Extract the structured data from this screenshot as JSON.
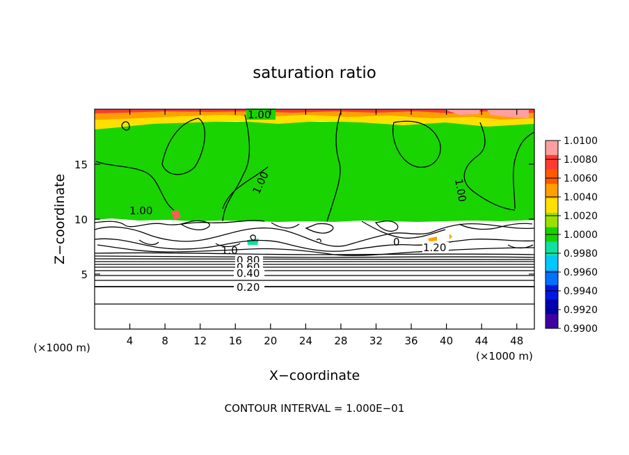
{
  "chart_data": {
    "type": "heatmap",
    "title": "saturation ratio",
    "xlabel": "X−coordinate",
    "ylabel": "Z−coordinate",
    "x_unit": "(×1000 m)",
    "x_unit_right": "(×1000 m)",
    "xlim": [
      0,
      50
    ],
    "ylim": [
      0,
      20
    ],
    "x_ticks": [
      4,
      8,
      12,
      16,
      20,
      24,
      28,
      32,
      36,
      40,
      44,
      48
    ],
    "y_ticks": [
      5,
      10,
      15
    ],
    "colorbar": {
      "labels": [
        "1.0100",
        "1.0080",
        "1.0060",
        "1.0040",
        "1.0020",
        "1.0000",
        "0.9980",
        "0.9960",
        "0.9940",
        "0.9920",
        "0.9900"
      ],
      "colors": [
        "#ff9f9f",
        "#ff3b30",
        "#ff5a00",
        "#ffa000",
        "#ffe000",
        "#9be000",
        "#19d000",
        "#10e0a0",
        "#00c8ff",
        "#0070ff",
        "#0018e0",
        "#0000b0",
        "#4000a0"
      ]
    },
    "contour_labels": [
      "1.00",
      "1.00",
      "1.00",
      "1.00",
      "1.00",
      "0",
      "1.20",
      "1.0",
      "0.80",
      "0.60",
      "0.40",
      "0.20"
    ],
    "footer": "CONTOUR INTERVAL = 1.000E−01"
  }
}
